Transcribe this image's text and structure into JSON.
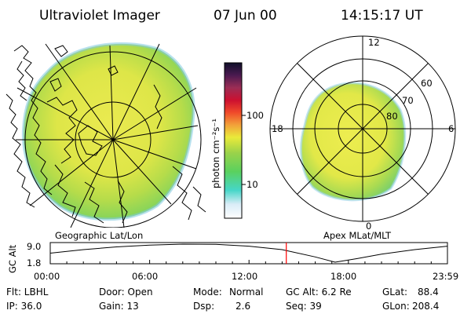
{
  "header": {
    "title": "Ultraviolet Imager",
    "date": "07 Jun 00",
    "time": "14:15:17 UT"
  },
  "left_panel": {
    "label": "Geographic Lat/Lon"
  },
  "right_panel": {
    "label": "Apex  MLat/MLT",
    "mlt_labels": {
      "top": "12",
      "left": "18",
      "right": "6",
      "bottom": "0"
    },
    "lat_labels": [
      "60",
      "70",
      "80"
    ]
  },
  "colorbar": {
    "unit_label": "photon cm⁻²s⁻¹",
    "ticks": [
      "100",
      "10"
    ],
    "colors": [
      "#ffffff",
      "#d9ecf7",
      "#46d6c8",
      "#5ad15e",
      "#9ad24a",
      "#eaea3a",
      "#f2a13a",
      "#f04a2a",
      "#cc1030",
      "#9b2d55",
      "#4a1a50",
      "#10102a"
    ]
  },
  "altitude_plot": {
    "ylabel": "GC Alt",
    "y_ticks": [
      "9.0",
      "1.8"
    ],
    "x_ticks": [
      "00:00",
      "06:00",
      "12:00",
      "18:00",
      "23:59"
    ],
    "series": {
      "t_hours": [
        0,
        2,
        4,
        6,
        8,
        10,
        12,
        14,
        16,
        17.2,
        18.5,
        20,
        22,
        23.98
      ],
      "alt_re": [
        5.4,
        6.8,
        7.9,
        8.6,
        9.0,
        8.9,
        8.2,
        6.8,
        3.9,
        1.8,
        3.2,
        5.0,
        6.8,
        8.2
      ]
    },
    "y_range": [
      1.8,
      9.0
    ],
    "x_range": [
      0,
      23.98
    ],
    "marker_hours": 14.25,
    "marker_color": "#ff0000"
  },
  "footer": {
    "row1": {
      "flt": "Flt: LBHL",
      "door": "Door: Open",
      "mode_label": "Mode:",
      "mode_value": "Normal",
      "gcalt": "GC Alt: 6.2 Re",
      "glat_label": "GLat:",
      "glat_value": "88.4"
    },
    "row2": {
      "ip": "IP: 36.0",
      "gain": "Gain: 13",
      "dsp_label": "Dsp:",
      "dsp_value": "2.6",
      "seq": "Seq: 39",
      "glon_label": "GLon:",
      "glon_value": "208.4"
    }
  }
}
